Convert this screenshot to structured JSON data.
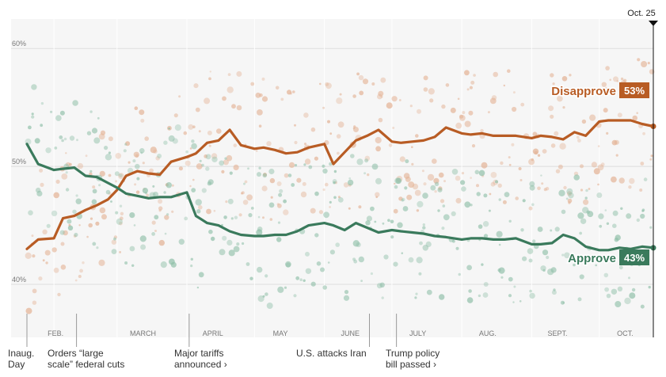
{
  "colors": {
    "approve": "#3a7a5c",
    "disapprove": "#b85c24",
    "approve_dot": "#8fbfa8",
    "disapprove_dot": "#e3b193",
    "grid": "#dddddd",
    "plot_bg": "#f6f6f6"
  },
  "current_date_label": "Oct. 25",
  "events": [
    {
      "id": "inaug",
      "lines": [
        "Inaug.",
        "Day"
      ],
      "arrow": false
    },
    {
      "id": "cuts",
      "lines": [
        "Orders “large",
        "scale” federal cuts"
      ],
      "arrow": false
    },
    {
      "id": "tariffs",
      "lines": [
        "Major tariffs",
        "announced ›"
      ],
      "arrow": true
    },
    {
      "id": "iran",
      "lines": [
        "U.S. attacks Iran"
      ],
      "arrow": false
    },
    {
      "id": "policy",
      "lines": [
        "Trump policy",
        "bill passed ›"
      ],
      "arrow": true
    }
  ],
  "chart_data": {
    "type": "line",
    "title": "",
    "xlabel": "",
    "ylabel": "",
    "x_ticks": [
      "FEB.",
      "MARCH",
      "APRIL",
      "MAY",
      "JUNE",
      "JULY",
      "AUG.",
      "SEPT.",
      "OCT."
    ],
    "y_ticks": [
      "40%",
      "50%",
      "60%"
    ],
    "ylim": [
      35.5,
      62.5
    ],
    "x_range": [
      "2025-01-20",
      "2025-10-25"
    ],
    "grid": true,
    "series": [
      {
        "name": "Disapprove",
        "end_value": "53%",
        "x": [
          "2025-01-20",
          "2025-01-25",
          "2025-02-01",
          "2025-02-05",
          "2025-02-10",
          "2025-02-15",
          "2025-02-20",
          "2025-02-25",
          "2025-03-01",
          "2025-03-05",
          "2025-03-10",
          "2025-03-15",
          "2025-03-20",
          "2025-03-25",
          "2025-04-01",
          "2025-04-05",
          "2025-04-10",
          "2025-04-15",
          "2025-04-20",
          "2025-04-25",
          "2025-05-01",
          "2025-05-05",
          "2025-05-10",
          "2025-05-15",
          "2025-05-20",
          "2025-05-25",
          "2025-06-01",
          "2025-06-05",
          "2025-06-10",
          "2025-06-15",
          "2025-06-20",
          "2025-06-25",
          "2025-07-01",
          "2025-07-05",
          "2025-07-10",
          "2025-07-15",
          "2025-07-20",
          "2025-07-25",
          "2025-08-01",
          "2025-08-05",
          "2025-08-10",
          "2025-08-15",
          "2025-08-20",
          "2025-08-25",
          "2025-09-01",
          "2025-09-05",
          "2025-09-10",
          "2025-09-15",
          "2025-09-20",
          "2025-09-25",
          "2025-10-01",
          "2025-10-05",
          "2025-10-10",
          "2025-10-15",
          "2025-10-20",
          "2025-10-25"
        ],
        "values": [
          43.0,
          43.8,
          43.9,
          45.6,
          45.8,
          46.3,
          46.7,
          47.2,
          48.0,
          49.2,
          49.6,
          49.4,
          49.3,
          50.4,
          50.8,
          51.1,
          52.0,
          52.2,
          53.1,
          51.8,
          51.5,
          51.6,
          51.4,
          51.1,
          51.2,
          51.6,
          51.9,
          50.2,
          51.2,
          52.2,
          52.6,
          53.1,
          52.1,
          52.0,
          52.1,
          52.2,
          52.5,
          53.3,
          52.8,
          52.7,
          52.8,
          52.6,
          52.6,
          52.6,
          52.4,
          52.6,
          52.5,
          52.3,
          52.9,
          52.6,
          53.8,
          53.9,
          53.9,
          53.9,
          53.6,
          53.4
        ]
      },
      {
        "name": "Approve",
        "end_value": "43%",
        "x": [
          "2025-01-20",
          "2025-01-25",
          "2025-02-01",
          "2025-02-05",
          "2025-02-10",
          "2025-02-15",
          "2025-02-20",
          "2025-02-25",
          "2025-03-01",
          "2025-03-05",
          "2025-03-10",
          "2025-03-15",
          "2025-03-20",
          "2025-03-25",
          "2025-04-01",
          "2025-04-05",
          "2025-04-10",
          "2025-04-15",
          "2025-04-20",
          "2025-04-25",
          "2025-05-01",
          "2025-05-05",
          "2025-05-10",
          "2025-05-15",
          "2025-05-20",
          "2025-05-25",
          "2025-06-01",
          "2025-06-05",
          "2025-06-10",
          "2025-06-15",
          "2025-06-20",
          "2025-06-25",
          "2025-07-01",
          "2025-07-05",
          "2025-07-10",
          "2025-07-15",
          "2025-07-20",
          "2025-07-25",
          "2025-08-01",
          "2025-08-05",
          "2025-08-10",
          "2025-08-15",
          "2025-08-20",
          "2025-08-25",
          "2025-09-01",
          "2025-09-05",
          "2025-09-10",
          "2025-09-15",
          "2025-09-20",
          "2025-09-25",
          "2025-10-01",
          "2025-10-05",
          "2025-10-10",
          "2025-10-15",
          "2025-10-20",
          "2025-10-25"
        ],
        "values": [
          51.9,
          50.2,
          49.7,
          49.8,
          49.9,
          49.2,
          49.1,
          48.6,
          48.2,
          47.7,
          47.5,
          47.3,
          47.4,
          47.4,
          47.8,
          45.8,
          45.2,
          45.0,
          44.5,
          44.2,
          44.1,
          44.1,
          44.2,
          44.2,
          44.5,
          45.0,
          45.2,
          45.0,
          44.6,
          45.2,
          44.8,
          44.4,
          44.6,
          44.5,
          44.4,
          44.3,
          44.1,
          44.0,
          43.8,
          43.9,
          43.9,
          43.8,
          43.8,
          43.9,
          43.4,
          43.4,
          43.5,
          44.2,
          43.9,
          43.2,
          42.9,
          42.9,
          43.1,
          43.0,
          43.2,
          43.1
        ]
      }
    ]
  }
}
